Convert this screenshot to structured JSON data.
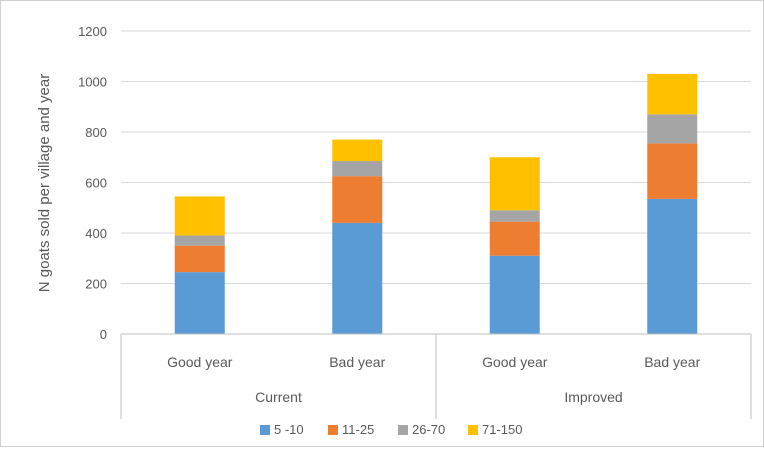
{
  "chart_data": {
    "type": "bar",
    "stacked": true,
    "title": "",
    "xlabel": "",
    "ylabel": "N goats sold per village and year",
    "ylim": [
      0,
      1200
    ],
    "yticks": [
      0,
      200,
      400,
      600,
      800,
      1000,
      1200
    ],
    "grid": true,
    "legend_position": "bottom",
    "categories": [
      "Good year",
      "Bad year",
      "Good year",
      "Bad year"
    ],
    "groups": [
      {
        "label": "Current",
        "categories": [
          0,
          1
        ]
      },
      {
        "label": "Improved",
        "categories": [
          2,
          3
        ]
      }
    ],
    "series": [
      {
        "name": "5 -10",
        "color": "#5b9bd5",
        "values": [
          245,
          440,
          310,
          535
        ]
      },
      {
        "name": "11-25",
        "color": "#ed7d31",
        "values": [
          105,
          185,
          135,
          220
        ]
      },
      {
        "name": "26-70",
        "color": "#a5a5a5",
        "values": [
          40,
          60,
          45,
          115
        ]
      },
      {
        "name": "71-150",
        "color": "#ffc000",
        "values": [
          155,
          85,
          210,
          160
        ]
      }
    ]
  }
}
